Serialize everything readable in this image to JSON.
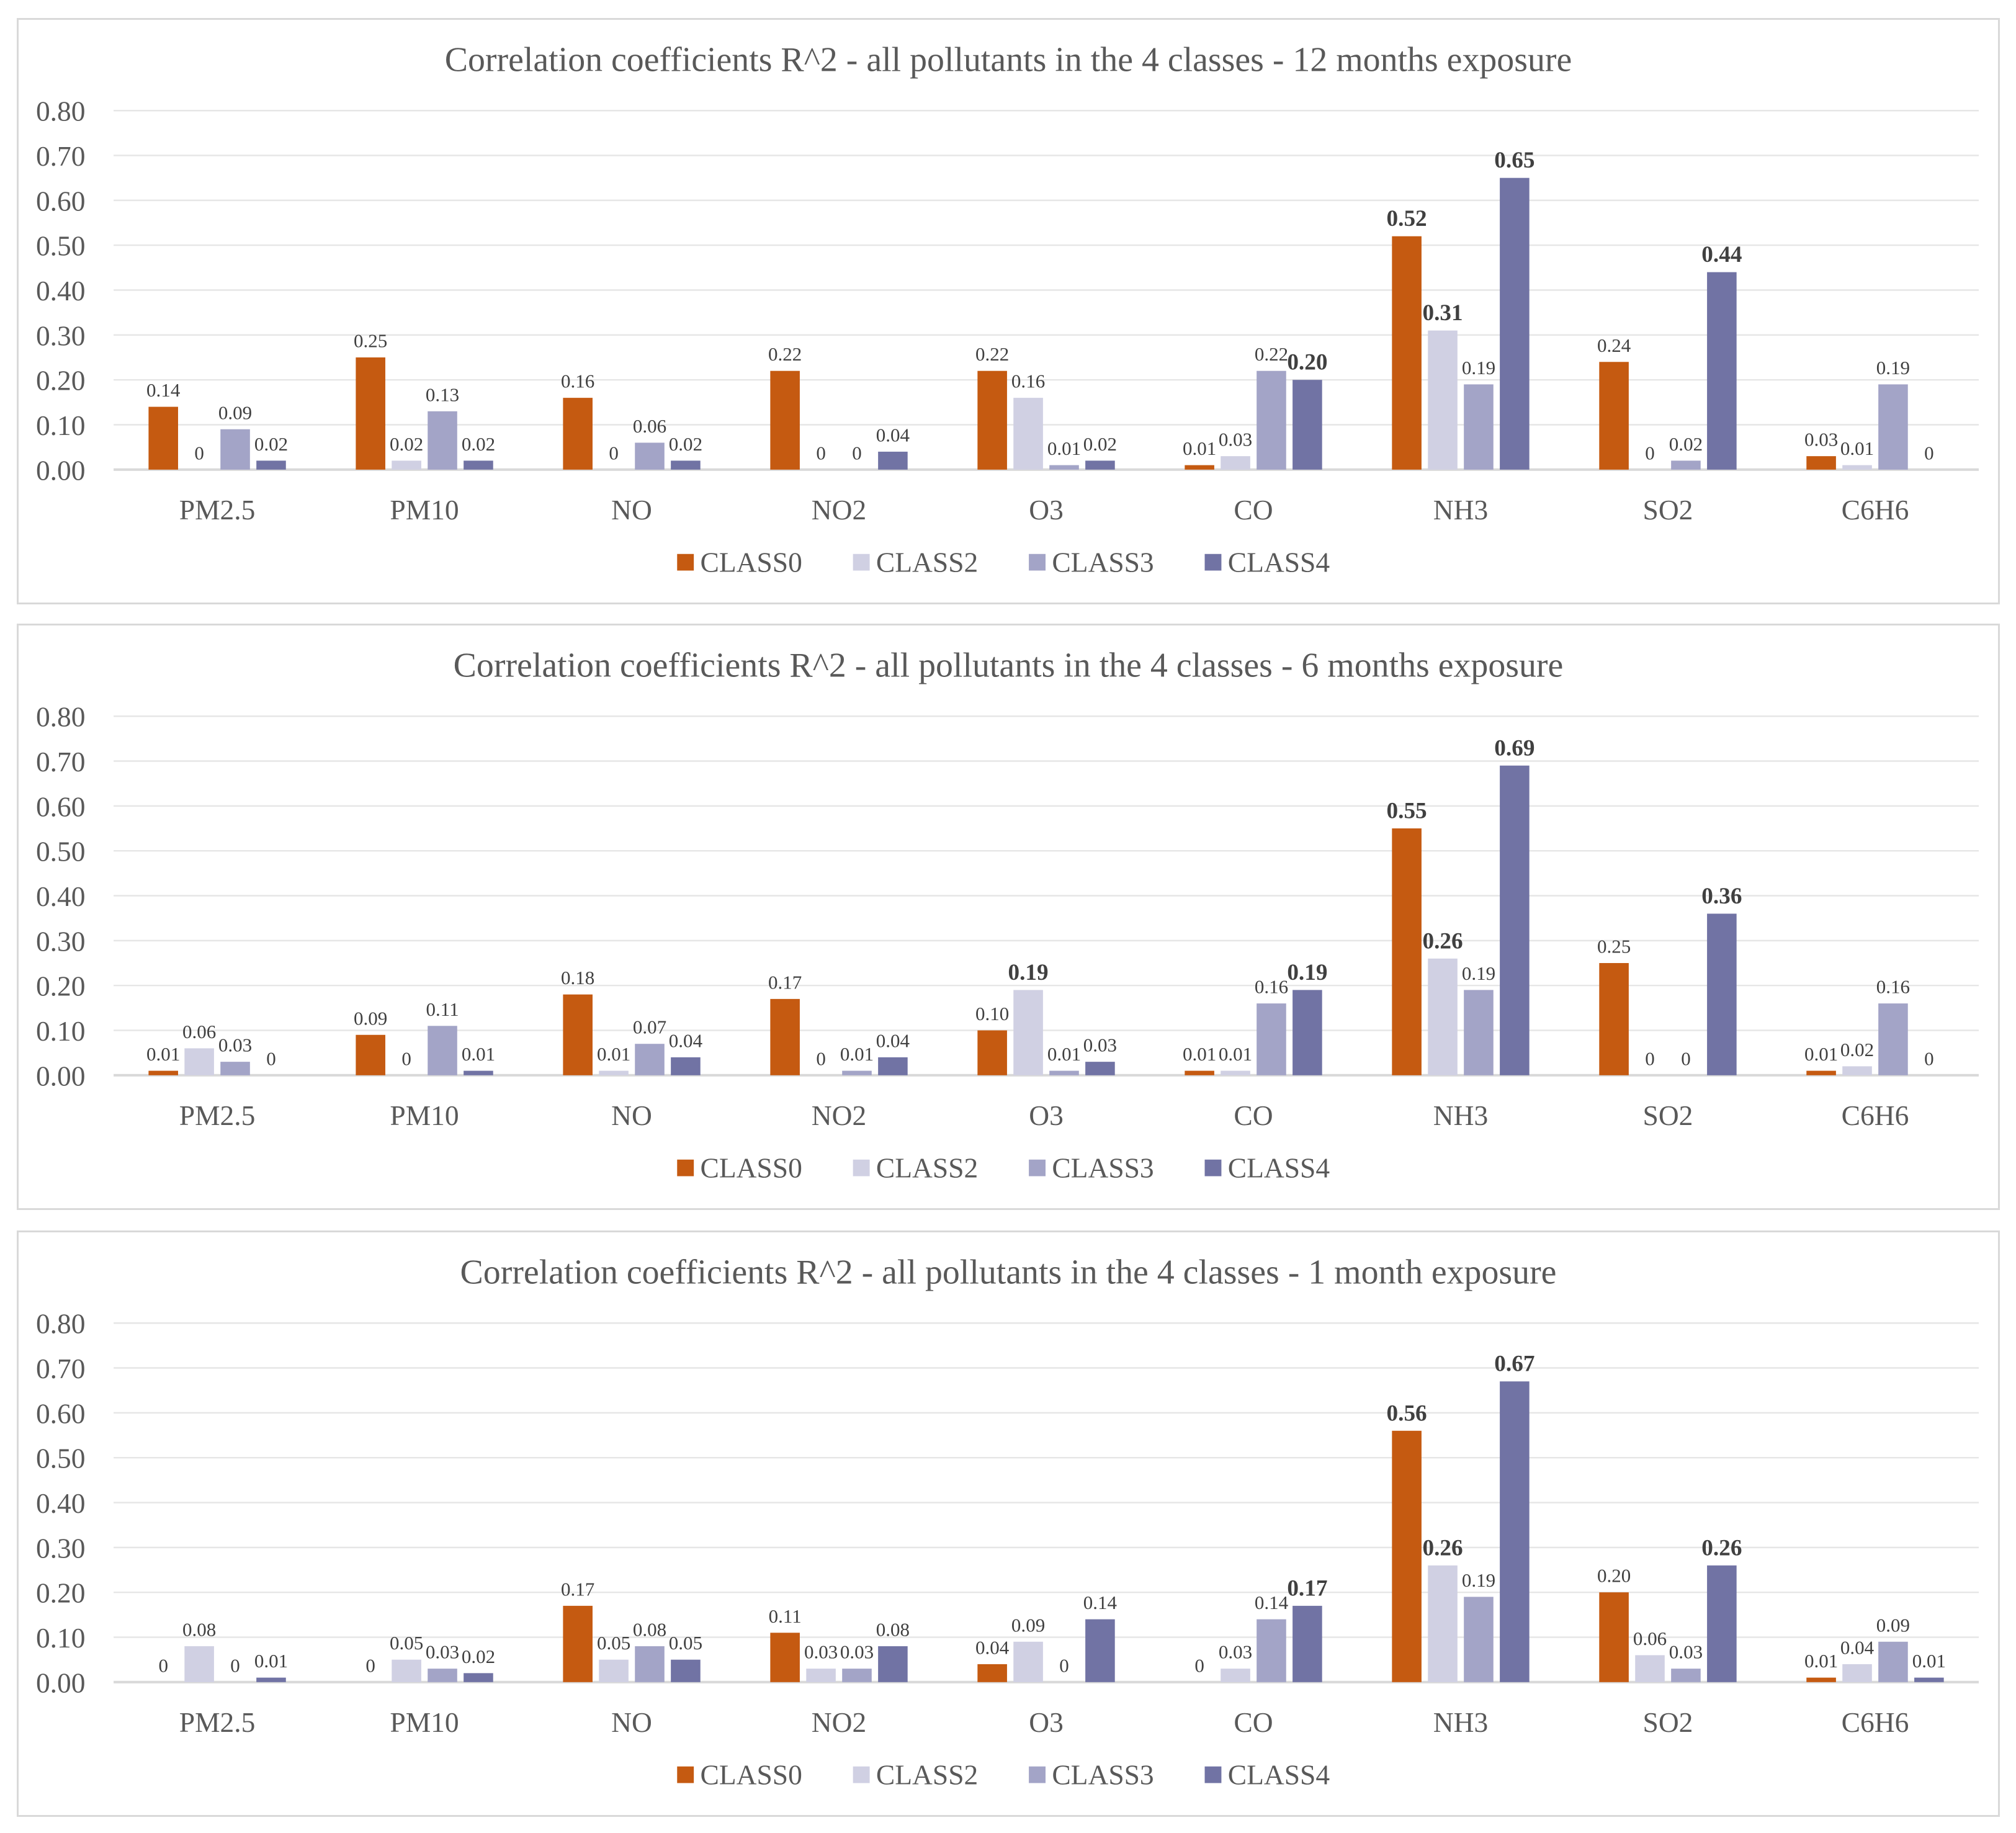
{
  "chart_data": [
    {
      "type": "bar",
      "title": "Correlation coefficients R^2 - all pollutants in the 4 classes - 12 months exposure",
      "categories": [
        "PM2.5",
        "PM10",
        "NO",
        "NO2",
        "O3",
        "CO",
        "NH3",
        "SO2",
        "C6H6"
      ],
      "ylim": [
        0,
        0.8
      ],
      "yticks": [
        "0.00",
        "0.10",
        "0.20",
        "0.30",
        "0.40",
        "0.50",
        "0.60",
        "0.70",
        "0.80"
      ],
      "grid": true,
      "legend_position": "bottom",
      "series": [
        {
          "name": "CLASS0",
          "color": "#C55A11",
          "values": [
            0.14,
            0.25,
            0.16,
            0.22,
            0.22,
            0.01,
            0.52,
            0.24,
            0.03
          ],
          "labels": [
            "0.14",
            "0.25",
            "0.16",
            "0.22",
            "0.22",
            "0.01",
            "0.52",
            "0.24",
            "0.03"
          ],
          "bold": [
            false,
            false,
            false,
            false,
            false,
            false,
            true,
            false,
            false
          ]
        },
        {
          "name": "CLASS2",
          "color": "#D0D0E3",
          "values": [
            0,
            0.02,
            0,
            0,
            0.16,
            0.03,
            0.31,
            0,
            0.01
          ],
          "labels": [
            "0",
            "0.02",
            "0",
            "0",
            "0.16",
            "0.03",
            "0.31",
            "0",
            "0.01"
          ],
          "bold": [
            false,
            false,
            false,
            false,
            false,
            false,
            true,
            false,
            false
          ]
        },
        {
          "name": "CLASS3",
          "color": "#A3A4C7",
          "values": [
            0.09,
            0.13,
            0.06,
            0,
            0.01,
            0.22,
            0.19,
            0.02,
            0.19
          ],
          "labels": [
            "0.09",
            "0.13",
            "0.06",
            "0",
            "0.01",
            "0.22",
            "0.19",
            "0.02",
            "0.19"
          ],
          "bold": [
            false,
            false,
            false,
            false,
            false,
            false,
            false,
            false,
            false
          ]
        },
        {
          "name": "CLASS4",
          "color": "#7173A4",
          "values": [
            0.02,
            0.02,
            0.02,
            0.04,
            0.02,
            0.2,
            0.65,
            0.44,
            0
          ],
          "labels": [
            "0.02",
            "0.02",
            "0.02",
            "0.04",
            "0.02",
            "0.20",
            "0.65",
            "0.44",
            "0"
          ],
          "bold": [
            false,
            false,
            false,
            false,
            false,
            true,
            true,
            true,
            false
          ]
        }
      ]
    },
    {
      "type": "bar",
      "title": "Correlation coefficients R^2 - all pollutants in the 4 classes - 6 months exposure",
      "categories": [
        "PM2.5",
        "PM10",
        "NO",
        "NO2",
        "O3",
        "CO",
        "NH3",
        "SO2",
        "C6H6"
      ],
      "ylim": [
        0,
        0.8
      ],
      "yticks": [
        "0.00",
        "0.10",
        "0.20",
        "0.30",
        "0.40",
        "0.50",
        "0.60",
        "0.70",
        "0.80"
      ],
      "grid": true,
      "legend_position": "bottom",
      "series": [
        {
          "name": "CLASS0",
          "color": "#C55A11",
          "values": [
            0.01,
            0.09,
            0.18,
            0.17,
            0.1,
            0.01,
            0.55,
            0.25,
            0.01
          ],
          "labels": [
            "0.01",
            "0.09",
            "0.18",
            "0.17",
            "0.10",
            "0.01",
            "0.55",
            "0.25",
            "0.01"
          ],
          "bold": [
            false,
            false,
            false,
            false,
            false,
            false,
            true,
            false,
            false
          ]
        },
        {
          "name": "CLASS2",
          "color": "#D0D0E3",
          "values": [
            0.06,
            0,
            0.01,
            0,
            0.19,
            0.01,
            0.26,
            0,
            0.02
          ],
          "labels": [
            "0.06",
            "0",
            "0.01",
            "0",
            "0.19",
            "0.01",
            "0.26",
            "0",
            "0.02"
          ],
          "bold": [
            false,
            false,
            false,
            false,
            true,
            false,
            true,
            false,
            false
          ]
        },
        {
          "name": "CLASS3",
          "color": "#A3A4C7",
          "values": [
            0.03,
            0.11,
            0.07,
            0.01,
            0.01,
            0.16,
            0.19,
            0,
            0.16
          ],
          "labels": [
            "0.03",
            "0.11",
            "0.07",
            "0.01",
            "0.01",
            "0.16",
            "0.19",
            "0",
            "0.16"
          ],
          "bold": [
            false,
            false,
            false,
            false,
            false,
            false,
            false,
            false,
            false
          ]
        },
        {
          "name": "CLASS4",
          "color": "#7173A4",
          "values": [
            0,
            0.01,
            0.04,
            0.04,
            0.03,
            0.19,
            0.69,
            0.36,
            0
          ],
          "labels": [
            "0",
            "0.01",
            "0.04",
            "0.04",
            "0.03",
            "0.19",
            "0.69",
            "0.36",
            "0"
          ],
          "bold": [
            false,
            false,
            false,
            false,
            false,
            true,
            true,
            true,
            false
          ]
        }
      ]
    },
    {
      "type": "bar",
      "title": "Correlation coefficients R^2 - all pollutants in the 4 classes - 1 month exposure",
      "categories": [
        "PM2.5",
        "PM10",
        "NO",
        "NO2",
        "O3",
        "CO",
        "NH3",
        "SO2",
        "C6H6"
      ],
      "ylim": [
        0,
        0.8
      ],
      "yticks": [
        "0.00",
        "0.10",
        "0.20",
        "0.30",
        "0.40",
        "0.50",
        "0.60",
        "0.70",
        "0.80"
      ],
      "grid": true,
      "legend_position": "bottom",
      "series": [
        {
          "name": "CLASS0",
          "color": "#C55A11",
          "values": [
            0,
            0,
            0.17,
            0.11,
            0.04,
            0,
            0.56,
            0.2,
            0.01
          ],
          "labels": [
            "0",
            "0",
            "0.17",
            "0.11",
            "0.04",
            "0",
            "0.56",
            "0.20",
            "0.01"
          ],
          "bold": [
            false,
            false,
            false,
            false,
            false,
            false,
            true,
            false,
            false
          ]
        },
        {
          "name": "CLASS2",
          "color": "#D0D0E3",
          "values": [
            0.08,
            0.05,
            0.05,
            0.03,
            0.09,
            0.03,
            0.26,
            0.06,
            0.04
          ],
          "labels": [
            "0.08",
            "0.05",
            "0.05",
            "0.03",
            "0.09",
            "0.03",
            "0.26",
            "0.06",
            "0.04"
          ],
          "bold": [
            false,
            false,
            false,
            false,
            false,
            false,
            true,
            false,
            false
          ]
        },
        {
          "name": "CLASS3",
          "color": "#A3A4C7",
          "values": [
            0,
            0.03,
            0.08,
            0.03,
            0,
            0.14,
            0.19,
            0.03,
            0.09
          ],
          "labels": [
            "0",
            "0.03",
            "0.08",
            "0.03",
            "0",
            "0.14",
            "0.19",
            "0.03",
            "0.09"
          ],
          "bold": [
            false,
            false,
            false,
            false,
            false,
            false,
            false,
            false,
            false
          ]
        },
        {
          "name": "CLASS4",
          "color": "#7173A4",
          "values": [
            0.01,
            0.02,
            0.05,
            0.08,
            0.14,
            0.17,
            0.67,
            0.26,
            0.01
          ],
          "labels": [
            "0.01",
            "0.02",
            "0.05",
            "0.08",
            "0.14",
            "0.17",
            "0.67",
            "0.26",
            "0.01"
          ],
          "bold": [
            false,
            false,
            false,
            false,
            false,
            true,
            true,
            true,
            false
          ]
        }
      ]
    }
  ]
}
